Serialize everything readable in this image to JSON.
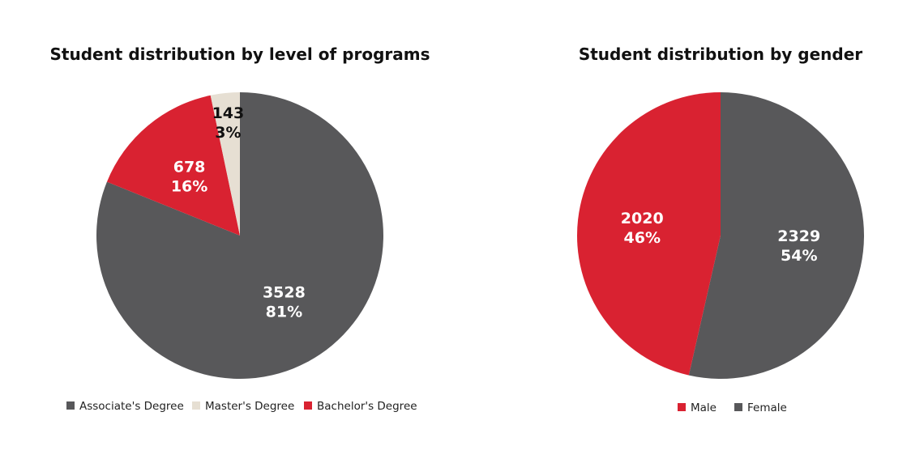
{
  "chart_data": [
    {
      "type": "pie",
      "title": "Student distribution by level of programs",
      "slices": [
        {
          "name": "Associate's Degree",
          "value": 3528,
          "percent": "81%",
          "color": "#58585a",
          "label_color": "#ffffff"
        },
        {
          "name": "Bachelor's Degree",
          "value": 678,
          "percent": "16%",
          "color": "#d92231",
          "label_color": "#ffffff"
        },
        {
          "name": "Master's Degree",
          "value": 143,
          "percent": "3%",
          "color": "#e6dfd3",
          "label_color": "#111111"
        }
      ],
      "legend": [
        "Associate's Degree",
        "Master's Degree",
        "Bachelor's Degree"
      ],
      "legend_placement": "bottom",
      "start": "top",
      "direction": "clockwise"
    },
    {
      "type": "pie",
      "title": "Student distribution by gender",
      "slices": [
        {
          "name": "Female",
          "value": 2329,
          "percent": "54%",
          "color": "#58585a",
          "label_color": "#ffffff"
        },
        {
          "name": "Male",
          "value": 2020,
          "percent": "46%",
          "color": "#d92231",
          "label_color": "#ffffff"
        }
      ],
      "legend": [
        "Male",
        "Female"
      ],
      "legend_placement": "bottom",
      "start": "top",
      "direction": "clockwise"
    }
  ]
}
